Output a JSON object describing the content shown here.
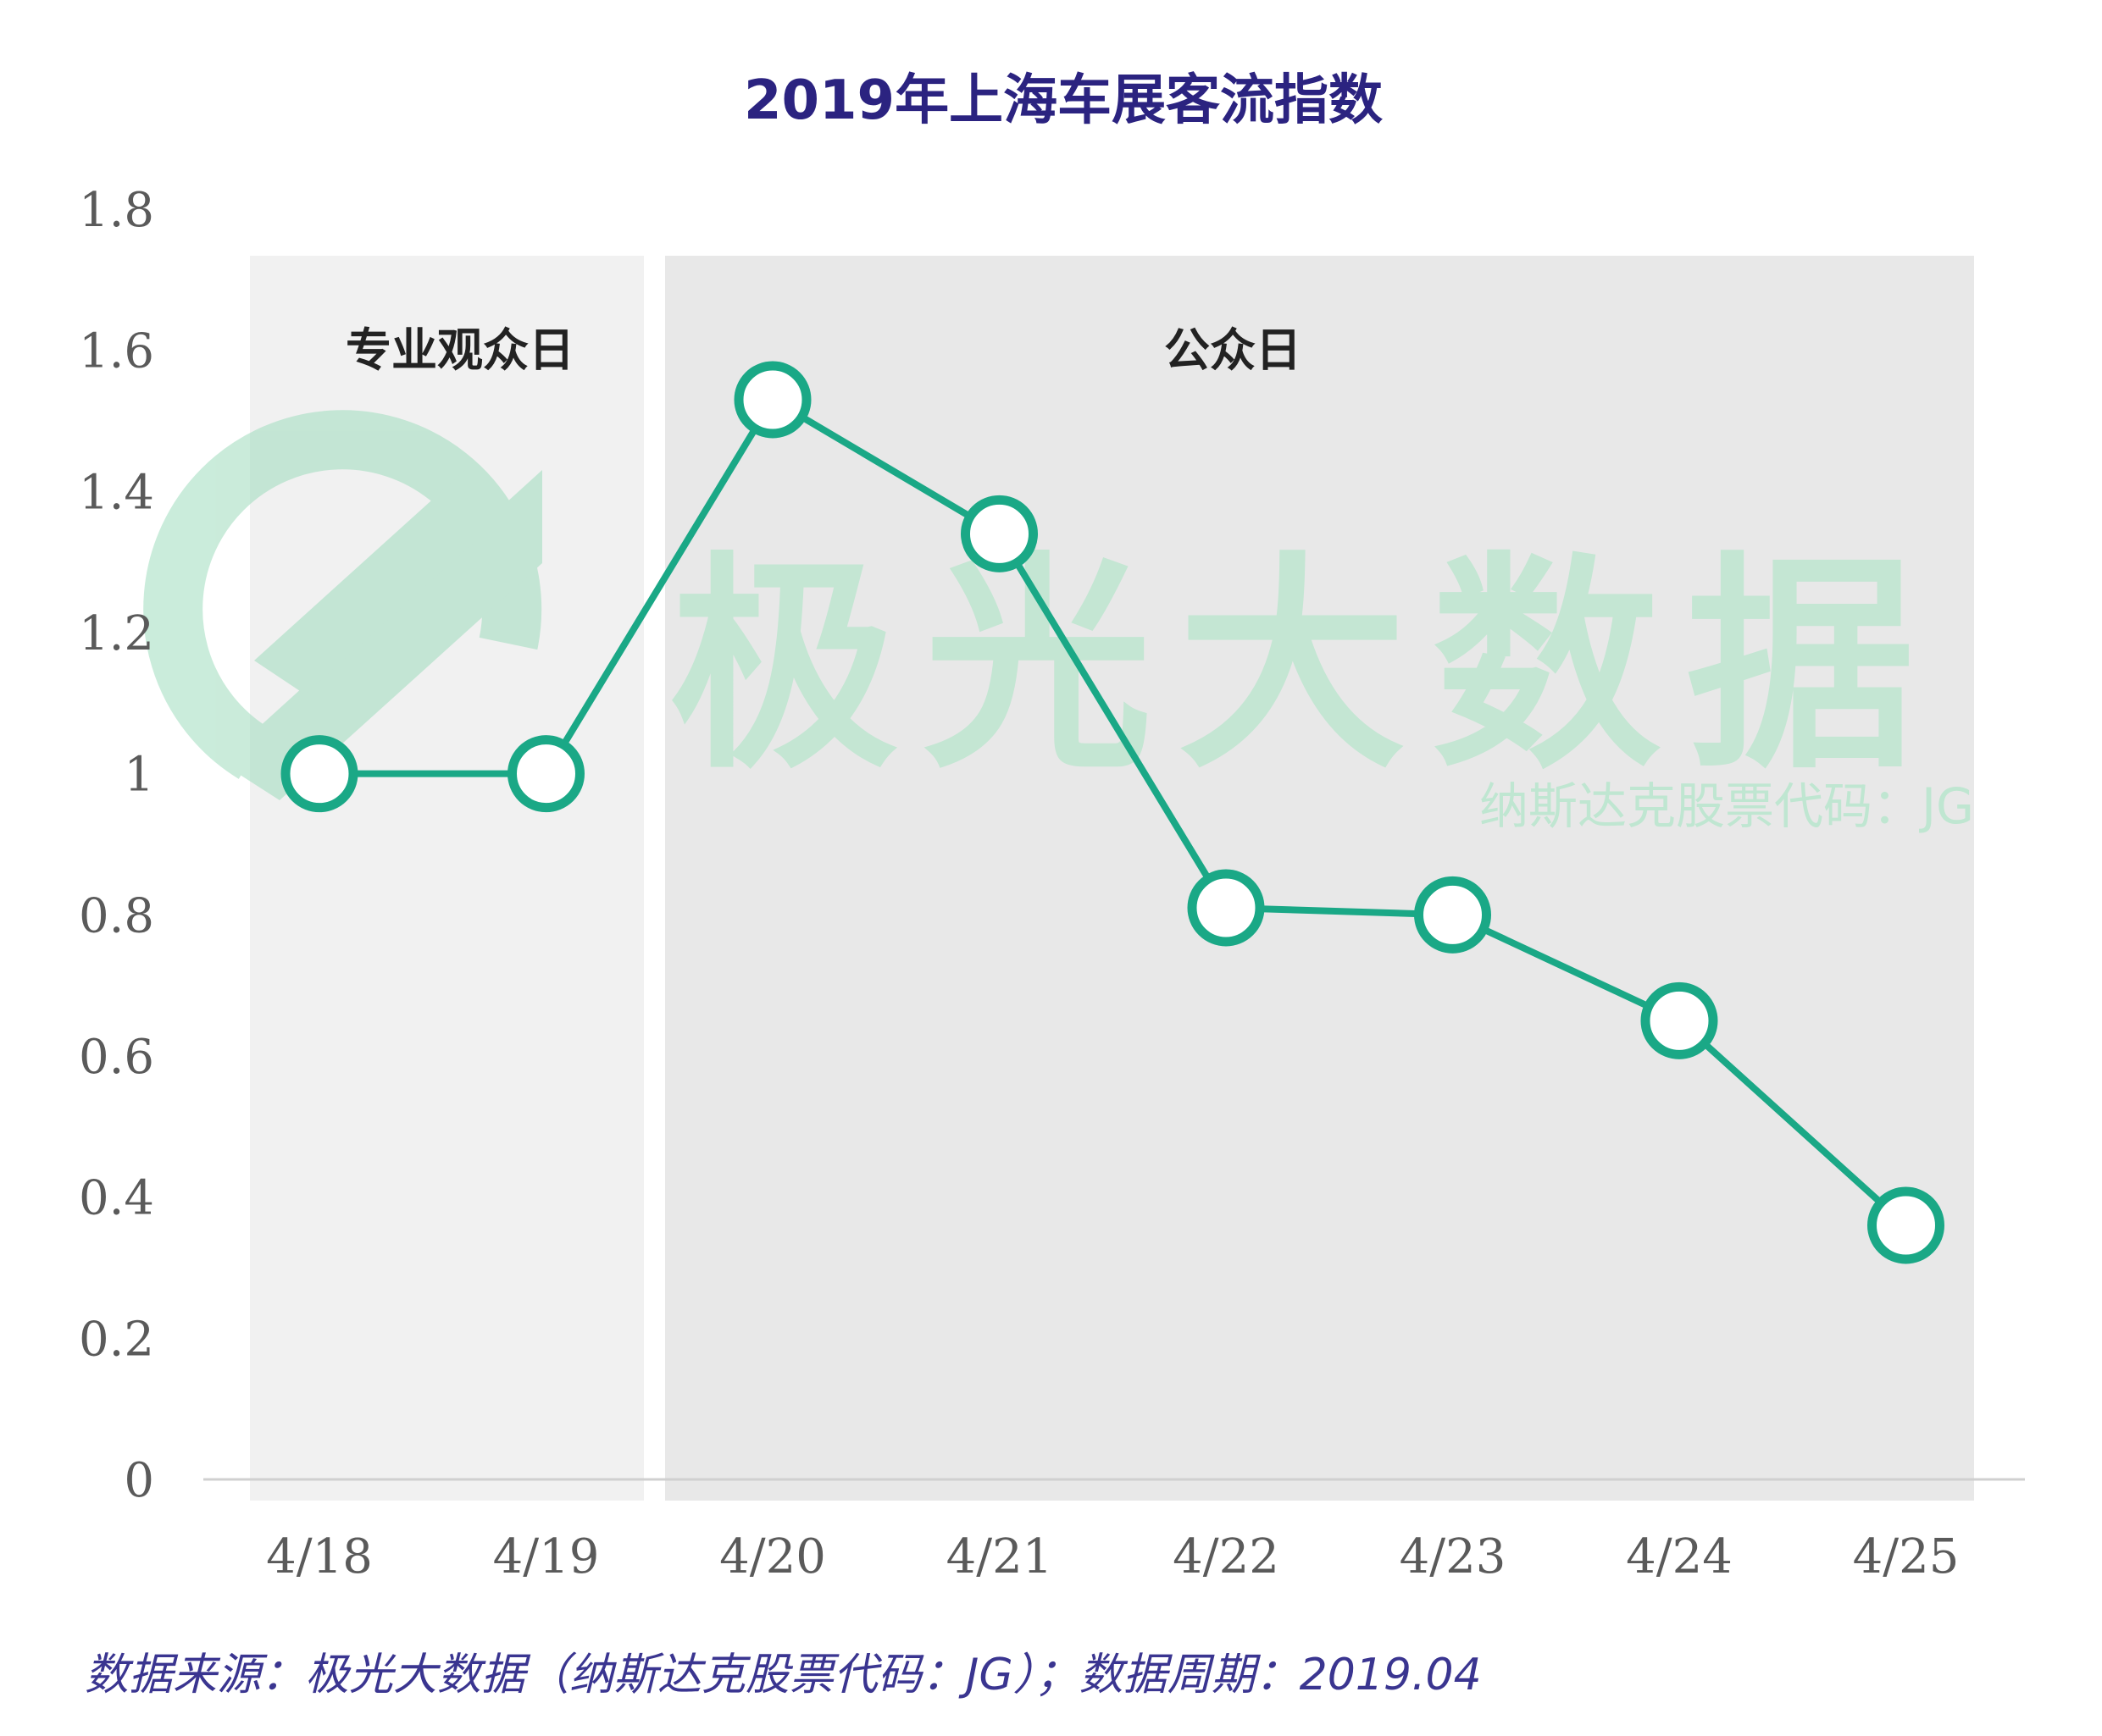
{
  "chart_data": {
    "type": "line",
    "title": "2019年上海车展客流指数",
    "categories": [
      "4/18",
      "4/19",
      "4/20",
      "4/21",
      "4/22",
      "4/23",
      "4/24",
      "4/25"
    ],
    "series": [
      {
        "name": "客流指数",
        "values": [
          1.0,
          1.0,
          1.53,
          1.34,
          0.81,
          0.8,
          0.65,
          0.36
        ]
      }
    ],
    "ylim": [
      0,
      1.8
    ],
    "yticks": [
      "0",
      "0.2",
      "0.4",
      "0.6",
      "0.8",
      "1",
      "1.2",
      "1.4",
      "1.6",
      "1.8"
    ],
    "ytick_values": [
      0,
      0.2,
      0.4,
      0.6,
      0.8,
      1.0,
      1.2,
      1.4,
      1.6,
      1.8
    ],
    "xlabel": "",
    "ylabel": "",
    "grid": false,
    "bands": [
      {
        "label": "专业观众日",
        "from": "4/18",
        "to": "4/19"
      },
      {
        "label": "公众日",
        "from": "4/20",
        "to": "4/25"
      }
    ],
    "colors": {
      "line": "#1aa886",
      "band_pro": "#f1f1f1",
      "band_public": "#e8e8e8",
      "title": "#2b2380",
      "source": "#3a3590"
    }
  },
  "watermark": {
    "brand": "极光大数据",
    "ticker": "纳斯达克股票代码：JG"
  },
  "source_note": "数据来源：极光大数据（纳斯达克股票代码：JG）；数据周期：2019.04"
}
